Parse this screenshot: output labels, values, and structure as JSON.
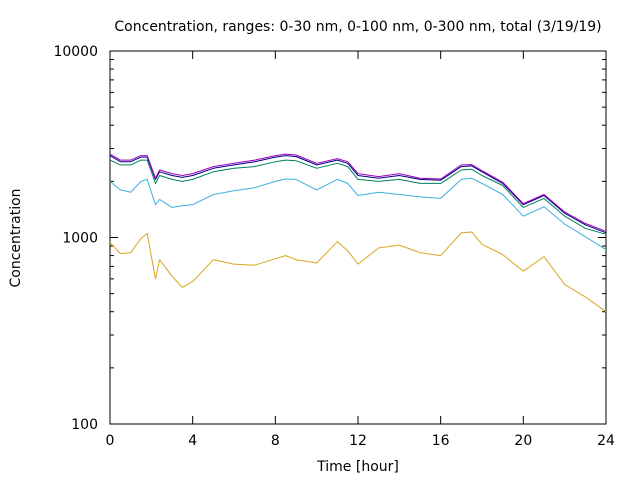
{
  "chart_data": {
    "type": "line",
    "title": "Concentration, ranges: 0-30 nm, 0-100 nm, 0-300 nm, total (3/19/19)",
    "xlabel": "Time [hour]",
    "ylabel": "Concentration",
    "xlim": [
      0,
      24
    ],
    "ylim": [
      100,
      10000
    ],
    "yscale": "log",
    "x_ticks": [
      0,
      4,
      8,
      12,
      16,
      20,
      24
    ],
    "x_tick_labels": [
      "0",
      "4",
      "8",
      "12",
      "16",
      "20",
      "24"
    ],
    "y_ticks": [
      100,
      1000,
      10000
    ],
    "y_tick_labels": [
      "100",
      "1000",
      "10000"
    ],
    "grid": false,
    "legend": "none",
    "x": [
      0,
      0.5,
      1,
      1.5,
      1.8,
      2.2,
      2.4,
      3,
      3.5,
      4,
      5,
      6,
      7,
      8,
      8.5,
      9,
      10,
      11,
      11.5,
      12,
      13,
      14,
      15,
      16,
      17,
      17.5,
      18,
      19,
      20,
      21,
      22,
      23,
      24
    ],
    "series": [
      {
        "color": "#daa520",
        "values": [
          940,
          820,
          830,
          990,
          1050,
          600,
          760,
          620,
          540,
          580,
          760,
          720,
          710,
          770,
          800,
          760,
          730,
          950,
          850,
          720,
          880,
          910,
          830,
          800,
          1060,
          1070,
          920,
          810,
          660,
          790,
          560,
          480,
          400
        ]
      },
      {
        "color": "#3ab0e0",
        "values": [
          2000,
          1800,
          1750,
          2000,
          2050,
          1500,
          1600,
          1450,
          1480,
          1500,
          1700,
          1780,
          1850,
          2000,
          2060,
          2050,
          1800,
          2050,
          1950,
          1680,
          1750,
          1700,
          1650,
          1620,
          2050,
          2080,
          1950,
          1700,
          1300,
          1460,
          1180,
          1010,
          860
        ]
      },
      {
        "color": "#008060",
        "values": [
          2600,
          2450,
          2450,
          2600,
          2600,
          1950,
          2150,
          2050,
          2000,
          2050,
          2250,
          2350,
          2400,
          2550,
          2600,
          2580,
          2350,
          2500,
          2400,
          2050,
          2000,
          2050,
          1950,
          1950,
          2300,
          2320,
          2150,
          1900,
          1450,
          1620,
          1300,
          1120,
          1040
        ]
      },
      {
        "color": "#000080",
        "values": [
          2750,
          2550,
          2550,
          2700,
          2700,
          2050,
          2250,
          2150,
          2100,
          2150,
          2350,
          2450,
          2550,
          2700,
          2750,
          2720,
          2450,
          2600,
          2500,
          2150,
          2080,
          2150,
          2050,
          2030,
          2400,
          2420,
          2250,
          1950,
          1500,
          1680,
          1350,
          1170,
          1060
        ]
      },
      {
        "color": "#a000c0",
        "values": [
          2800,
          2600,
          2600,
          2750,
          2750,
          2080,
          2300,
          2200,
          2150,
          2200,
          2400,
          2500,
          2600,
          2750,
          2800,
          2770,
          2500,
          2650,
          2550,
          2200,
          2120,
          2200,
          2080,
          2060,
          2450,
          2460,
          2280,
          1980,
          1520,
          1700,
          1370,
          1190,
          1080
        ]
      }
    ]
  }
}
